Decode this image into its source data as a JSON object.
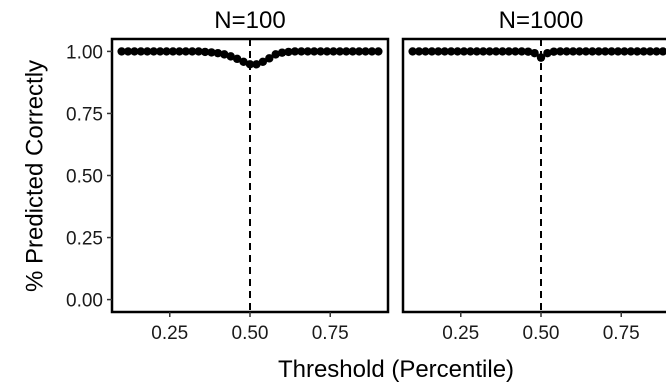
{
  "chart_data": {
    "type": "scatter",
    "xlabel": "Threshold (Percentile)",
    "ylabel": "% Predicted Correctly",
    "xlim": [
      0.07,
      0.93
    ],
    "ylim": [
      -0.05,
      1.05
    ],
    "x_ticks": [
      0.25,
      0.5,
      0.75
    ],
    "x_tick_labels": [
      "0.25",
      "0.50",
      "0.75"
    ],
    "y_ticks": [
      0,
      0.25,
      0.5,
      0.75,
      1
    ],
    "y_tick_labels": [
      "0.00",
      "0.25",
      "0.50",
      "0.75",
      "1.00"
    ],
    "grid": false,
    "reference_line_x": 0.5,
    "panels": [
      {
        "label": "N=100",
        "x": [
          0.1,
          0.12,
          0.14,
          0.16,
          0.18,
          0.2,
          0.22,
          0.24,
          0.26,
          0.28,
          0.3,
          0.32,
          0.34,
          0.36,
          0.38,
          0.4,
          0.42,
          0.44,
          0.46,
          0.48,
          0.5,
          0.52,
          0.54,
          0.56,
          0.58,
          0.6,
          0.62,
          0.64,
          0.66,
          0.68,
          0.7,
          0.72,
          0.74,
          0.76,
          0.78,
          0.8,
          0.82,
          0.84,
          0.86,
          0.88,
          0.9
        ],
        "y": [
          1.0,
          1.0,
          1.0,
          1.0,
          1.0,
          1.0,
          1.0,
          1.0,
          1.0,
          1.0,
          1.0,
          1.0,
          1.0,
          0.998,
          0.996,
          0.993,
          0.988,
          0.98,
          0.97,
          0.958,
          0.948,
          0.948,
          0.958,
          0.972,
          0.988,
          0.995,
          0.998,
          1.0,
          1.0,
          1.0,
          1.0,
          1.0,
          1.0,
          1.0,
          1.0,
          1.0,
          1.0,
          1.0,
          1.0,
          1.0,
          1.0
        ]
      },
      {
        "label": "N=1000",
        "x": [
          0.1,
          0.12,
          0.14,
          0.16,
          0.18,
          0.2,
          0.22,
          0.24,
          0.26,
          0.28,
          0.3,
          0.32,
          0.34,
          0.36,
          0.38,
          0.4,
          0.42,
          0.44,
          0.46,
          0.48,
          0.5,
          0.52,
          0.54,
          0.56,
          0.58,
          0.6,
          0.62,
          0.64,
          0.66,
          0.68,
          0.7,
          0.72,
          0.74,
          0.76,
          0.78,
          0.8,
          0.82,
          0.84,
          0.86,
          0.88,
          0.9
        ],
        "y": [
          1.0,
          1.0,
          1.0,
          1.0,
          1.0,
          1.0,
          1.0,
          1.0,
          1.0,
          1.0,
          1.0,
          1.0,
          1.0,
          1.0,
          1.0,
          1.0,
          1.0,
          1.0,
          0.999,
          0.993,
          0.975,
          0.993,
          0.999,
          1.0,
          1.0,
          1.0,
          1.0,
          1.0,
          1.0,
          1.0,
          1.0,
          1.0,
          1.0,
          1.0,
          1.0,
          1.0,
          1.0,
          1.0,
          1.0,
          1.0,
          1.0
        ]
      }
    ]
  }
}
